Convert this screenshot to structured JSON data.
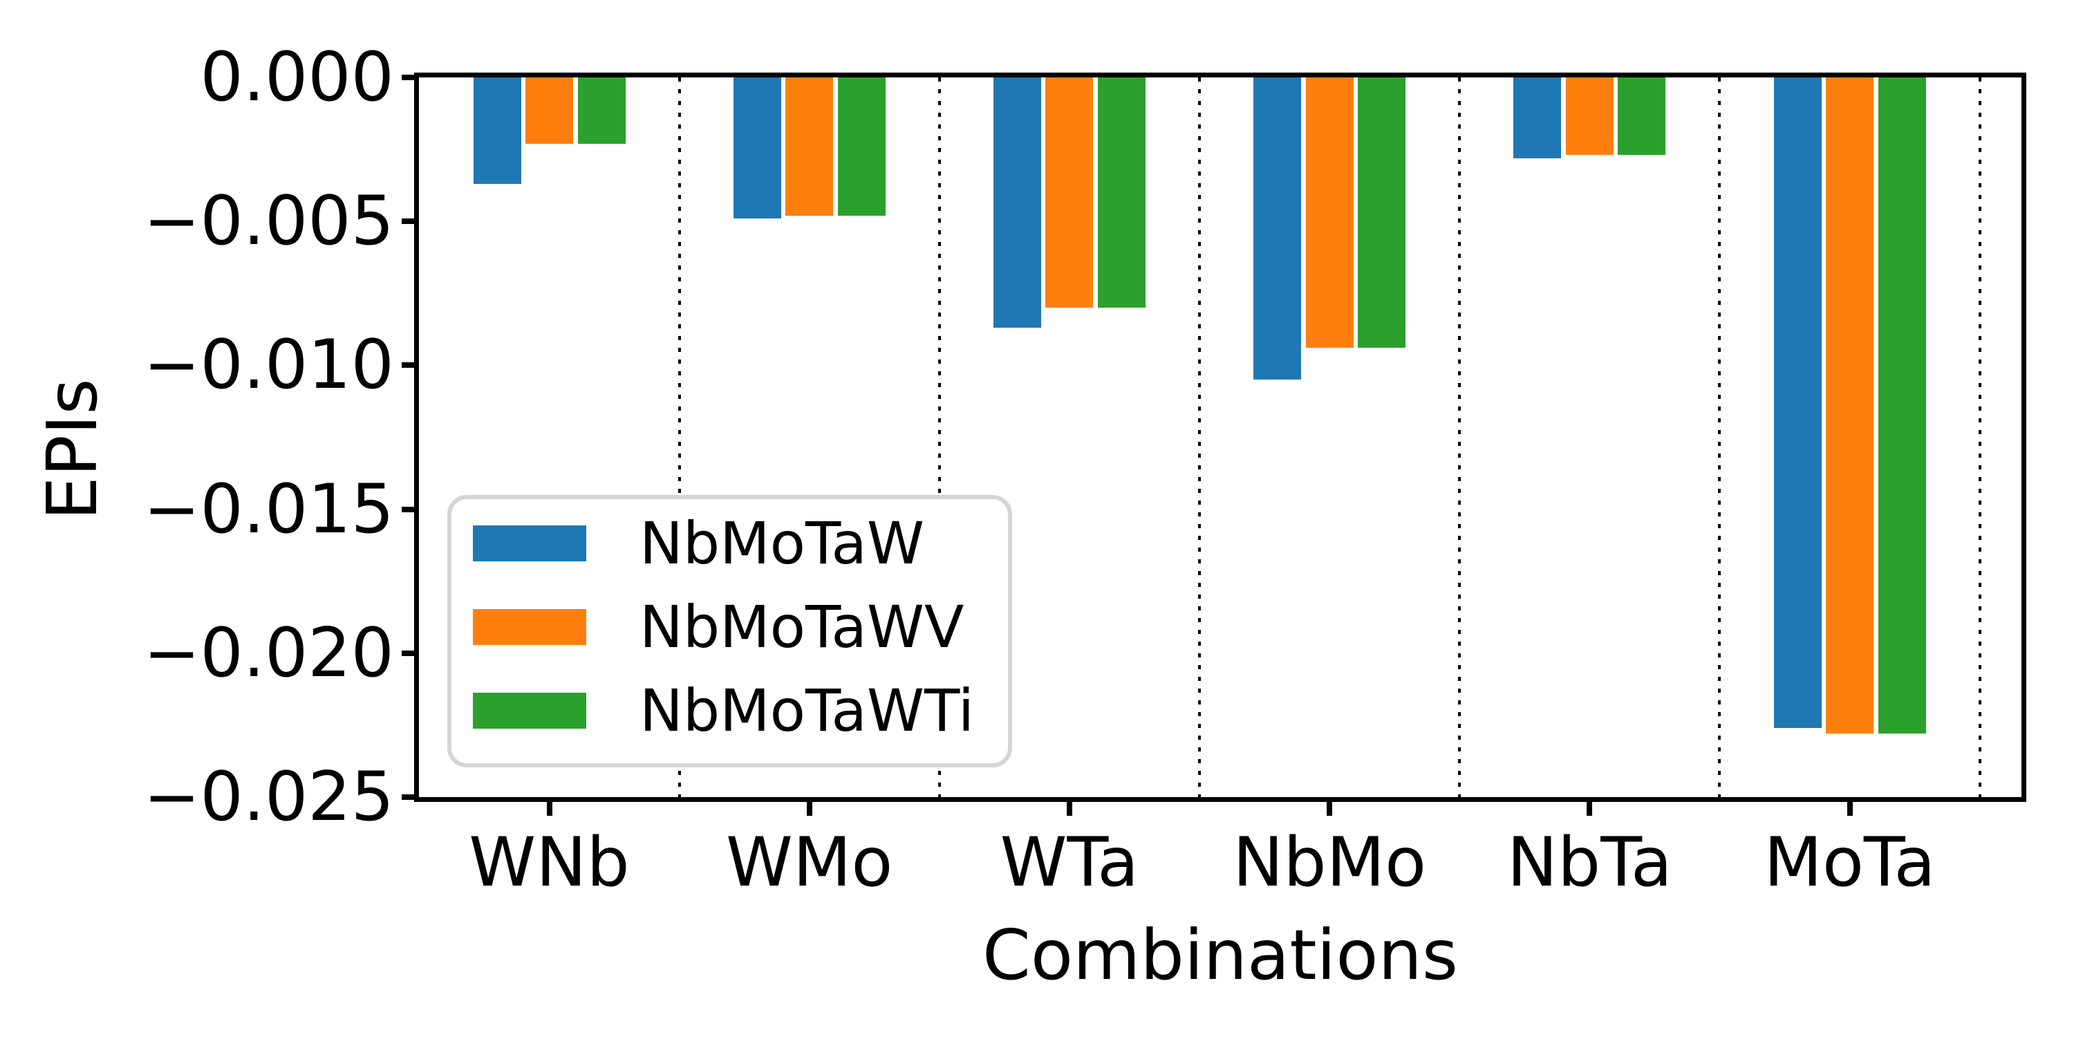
{
  "figure": {
    "background": "#ffffff"
  },
  "chart_data": {
    "type": "bar",
    "title": "",
    "xlabel": "Combinations",
    "ylabel": "EPIs",
    "categories": [
      "WNb",
      "WMo",
      "WTa",
      "NbMo",
      "NbTa",
      "MoTa"
    ],
    "series": [
      {
        "name": "NbMoTaW",
        "color": "#1f77b4",
        "values": [
          -0.0037,
          -0.0049,
          -0.0087,
          -0.0105,
          -0.0028,
          -0.0226
        ]
      },
      {
        "name": "NbMoTaWV",
        "color": "#ff7f0e",
        "values": [
          -0.0023,
          -0.0048,
          -0.008,
          -0.0094,
          -0.0027,
          -0.0228
        ]
      },
      {
        "name": "NbMoTaWTi",
        "color": "#2ca02c",
        "values": [
          -0.0023,
          -0.0048,
          -0.008,
          -0.0094,
          -0.0027,
          -0.0228
        ]
      }
    ],
    "ylim": [
      -0.025,
      0.0
    ],
    "yticks": {
      "values": [
        0.0,
        -0.005,
        -0.01,
        -0.015,
        -0.02,
        -0.025
      ],
      "labels": [
        "0.000",
        "−0.005",
        "−0.010",
        "−0.015",
        "−0.020",
        "−0.025"
      ]
    },
    "grid": false,
    "separators": "black dotted vertical lines at category boundaries",
    "legend_position": "lower left inside plot",
    "bar_gap_note": "3 bars per category, no edge stroke"
  },
  "legend": {
    "items": [
      {
        "label": "NbMoTaW",
        "color": "#1f77b4"
      },
      {
        "label": "NbMoTaWV",
        "color": "#ff7f0e"
      },
      {
        "label": "NbMoTaWTi",
        "color": "#2ca02c"
      }
    ],
    "border_color": "#d5d5d5"
  },
  "styles": {
    "axis_color": "#000000",
    "text_color": "#000000",
    "separator_color": "#000000"
  }
}
